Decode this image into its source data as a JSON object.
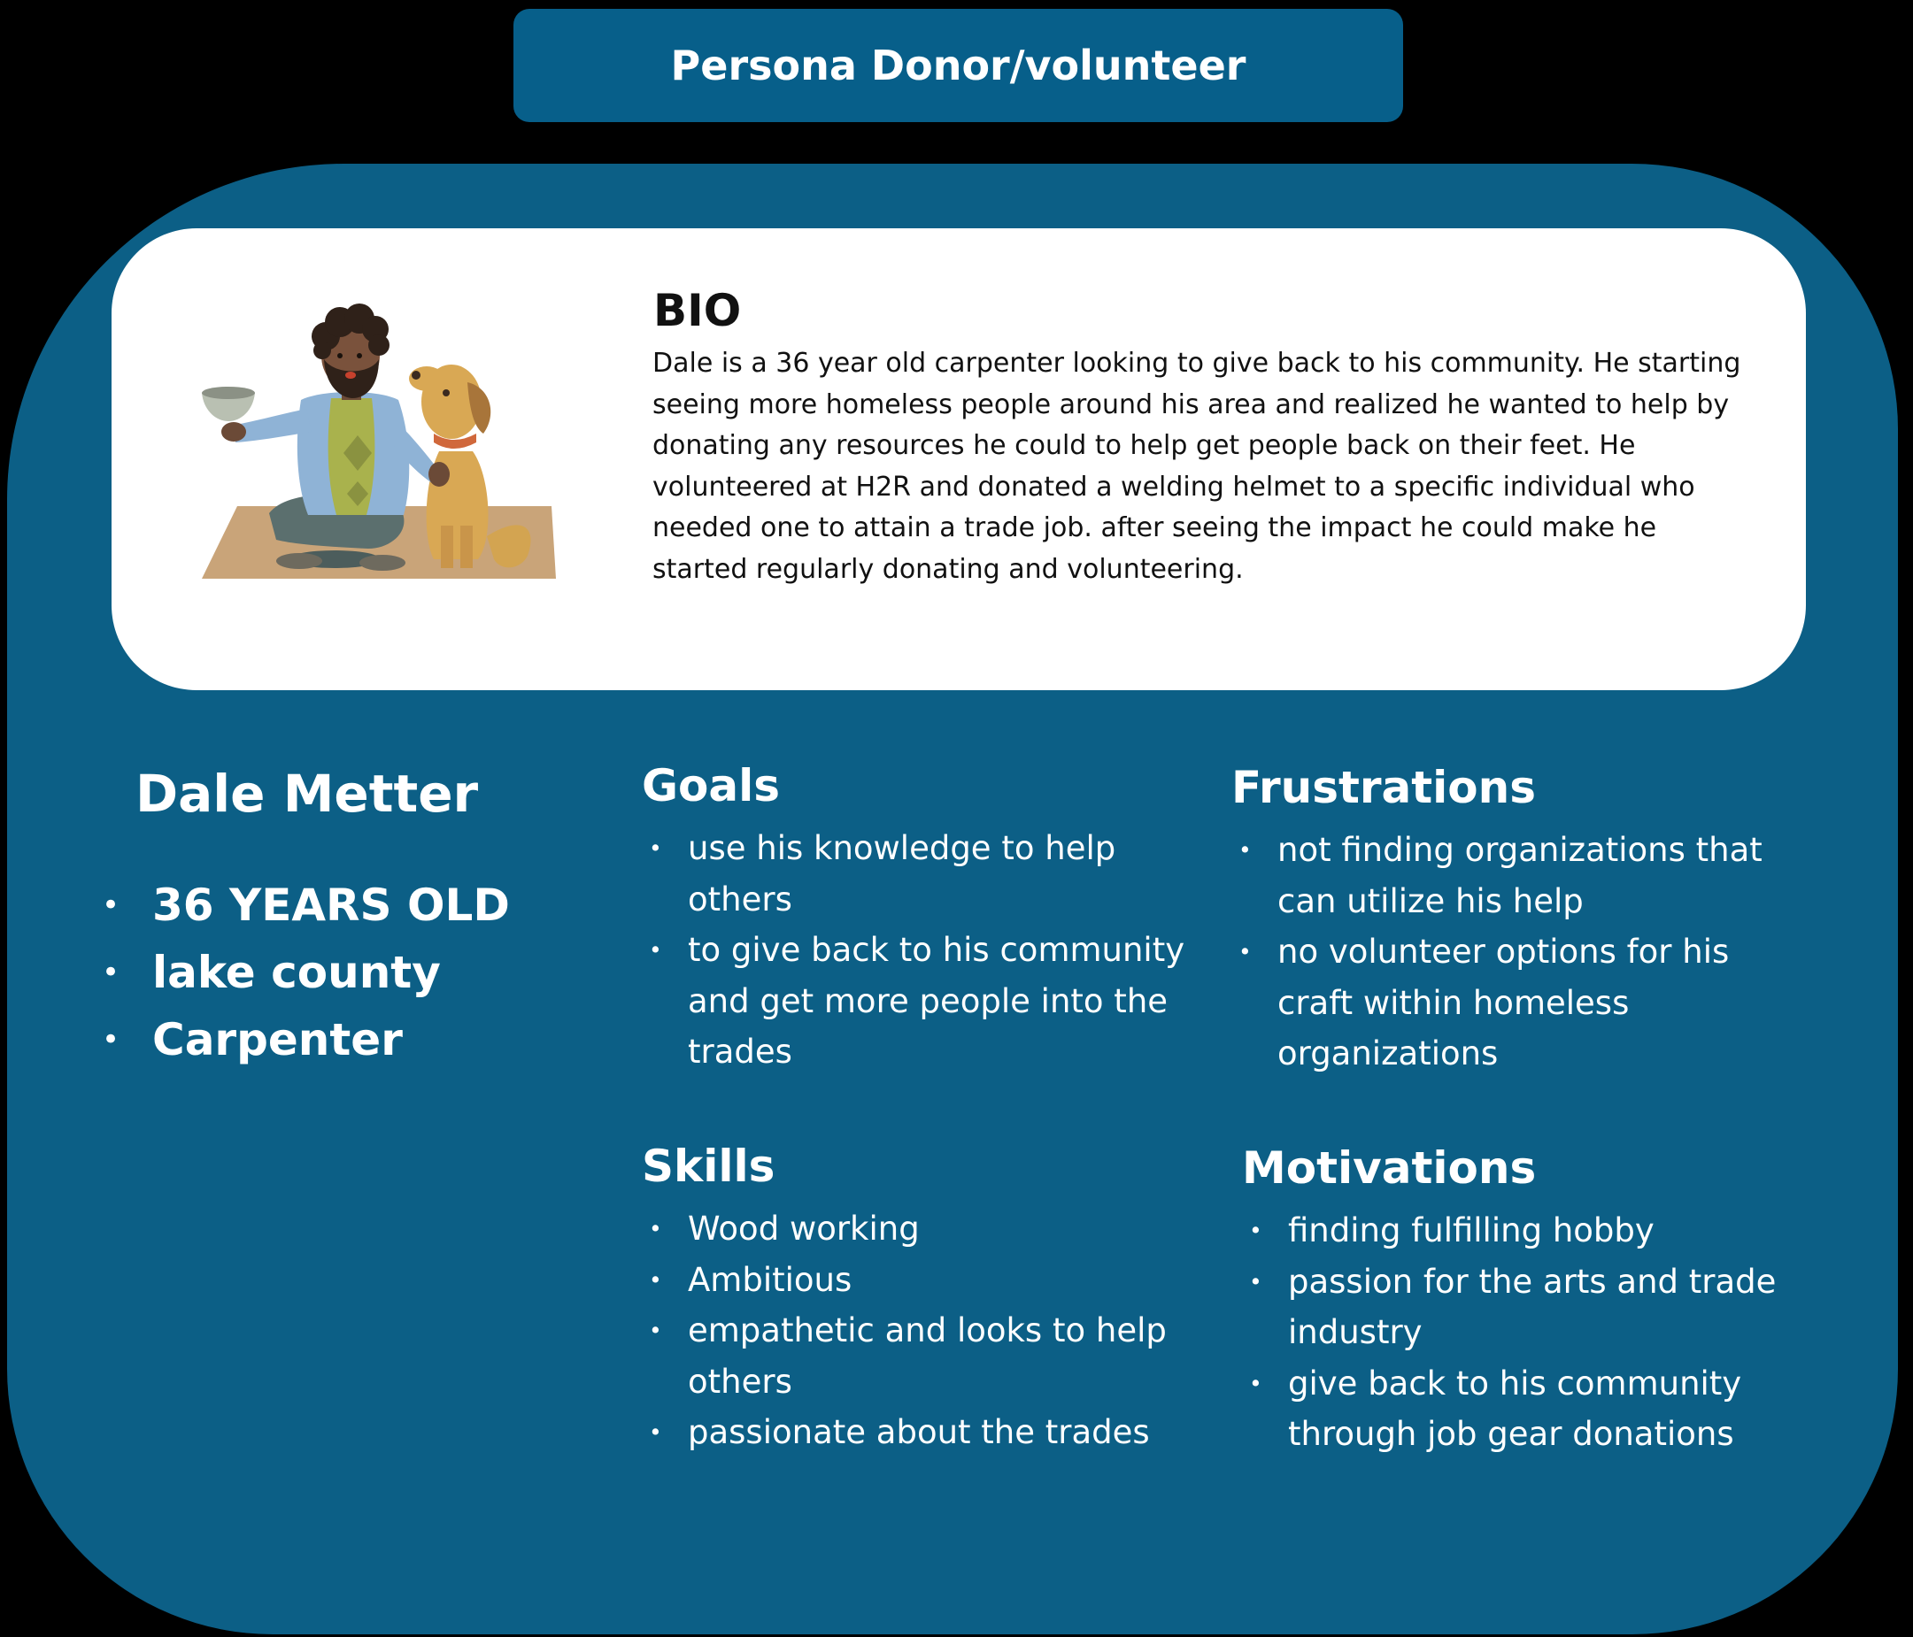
{
  "header": {
    "title": "Persona Donor/volunteer"
  },
  "bio": {
    "heading": "BIO",
    "text": "Dale is a 36 year old carpenter looking to give back to his community. He starting seeing more homeless people  around his area and realized he wanted to help by donating any resources he could to help get people back on their feet. He volunteered at H2R and donated a welding helmet to a specific individual who needed one to attain a trade job.  after seeing the impact he could make he started regularly donating and volunteering."
  },
  "profile": {
    "name": "Dale Metter",
    "facts": [
      "36 YEARS OLD",
      "lake county",
      "Carpenter"
    ]
  },
  "goals": {
    "heading": "Goals",
    "items": [
      "use his knowledge to help others",
      "to give back to his community and get more people into the trades"
    ]
  },
  "frustrations": {
    "heading": "Frustrations",
    "items": [
      "not finding organizations that can utilize his help",
      "no volunteer options for his craft within homeless organizations"
    ]
  },
  "skills": {
    "heading": "Skills",
    "items": [
      "Wood working",
      "Ambitious",
      "empathetic and looks to help others",
      "passionate about the trades"
    ]
  },
  "motivations": {
    "heading": "Motivations",
    "items": [
      "finding fulfilling hobby",
      "passion for the arts and trade industry",
      "give back to his community through job gear donations"
    ]
  },
  "colors": {
    "card_blue": "#0c5f86",
    "title_blue": "#075f8a",
    "bio_background": "#ffffff"
  },
  "icons": {
    "illustration": "man-with-dog-illustration"
  }
}
